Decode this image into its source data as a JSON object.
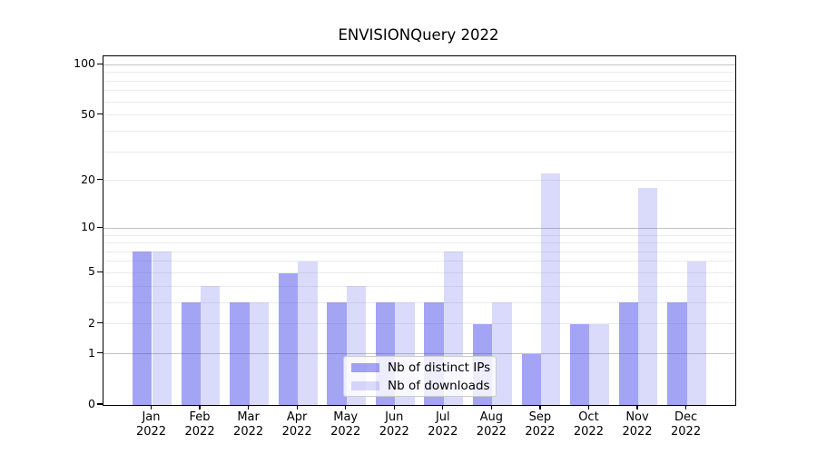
{
  "chart_data": {
    "type": "bar",
    "title": "ENVISIONQuery 2022",
    "xlabel": "",
    "ylabel": "",
    "categories": [
      "Jan",
      "Feb",
      "Mar",
      "Apr",
      "May",
      "Jun",
      "Jul",
      "Aug",
      "Sep",
      "Oct",
      "Nov",
      "Dec"
    ],
    "year": "2022",
    "series": [
      {
        "name": "Nb of distinct IPs",
        "color": "rgba(70,70,235,0.49)",
        "values": [
          7,
          3,
          3,
          5,
          3,
          3,
          3,
          2,
          1,
          2,
          3,
          3
        ]
      },
      {
        "name": "Nb of downloads",
        "color": "rgba(70,70,235,0.20)",
        "values": [
          7,
          4,
          3,
          6,
          4,
          3,
          7,
          3,
          22,
          2,
          18,
          6
        ]
      }
    ],
    "yscale": "log1p",
    "ylim": [
      0,
      112
    ],
    "yticks": [
      0,
      1,
      2,
      5,
      10,
      20,
      50,
      100
    ],
    "grid": {
      "major": [
        1,
        10,
        100
      ],
      "minor": [
        2,
        3,
        4,
        5,
        6,
        7,
        8,
        9,
        20,
        30,
        40,
        50,
        60,
        70,
        80,
        90
      ]
    },
    "legend_position": "lower center"
  }
}
